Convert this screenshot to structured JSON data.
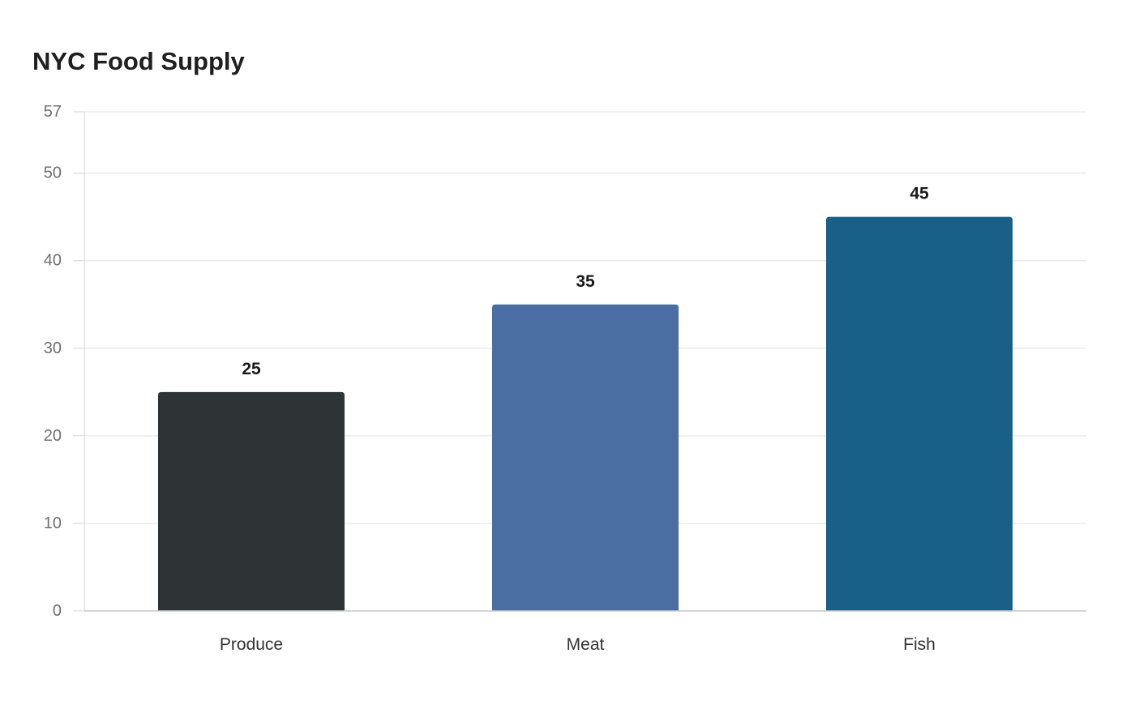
{
  "chart_data": {
    "type": "bar",
    "title": "NYC Food Supply",
    "xlabel": "",
    "ylabel": "",
    "categories": [
      "Produce",
      "Meat",
      "Fish"
    ],
    "values": [
      25,
      35,
      45
    ],
    "colors": [
      "#2e3436",
      "#4a6da2",
      "#186087"
    ],
    "ylim": [
      0,
      57
    ],
    "yticks": [
      0,
      10,
      20,
      30,
      40,
      50,
      57
    ],
    "grid": true,
    "legend": "none"
  }
}
